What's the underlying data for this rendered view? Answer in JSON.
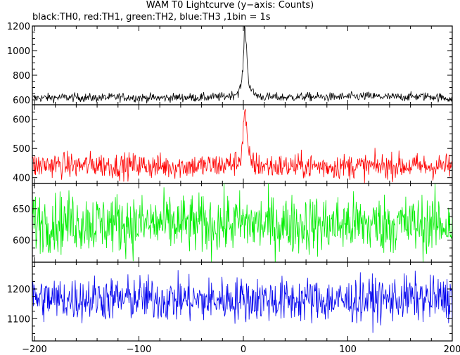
{
  "chart_data": {
    "type": "line",
    "title": "WAM T0 Lightcurve (y−axis: Counts)",
    "subtitle": "black:TH0, red:TH1, green:TH2, blue:TH3 ,1bin = 1s",
    "xlim": [
      -202,
      200
    ],
    "x_ticks": [
      -200,
      -100,
      0,
      100,
      200
    ],
    "x_tick_labels": [
      "−200",
      "−100",
      "0",
      "100",
      "200"
    ],
    "grid": false,
    "panels": [
      {
        "name": "TH0",
        "color": "#000000",
        "ylim": [
          560,
          1200
        ],
        "y_ticks": [
          600,
          800,
          1000,
          1200
        ],
        "y_tick_labels": [
          "600",
          "800",
          "1000",
          "1200"
        ],
        "x": [
          -200,
          -180,
          -160,
          -140,
          -120,
          -100,
          -80,
          -60,
          -40,
          -20,
          -10,
          -5,
          -2,
          0,
          1,
          2,
          3,
          4,
          5,
          6,
          8,
          10,
          15,
          20,
          40,
          60,
          80,
          100,
          120,
          140,
          160,
          180,
          198
        ],
        "values": [
          615,
          618,
          620,
          615,
          622,
          618,
          615,
          620,
          618,
          625,
          640,
          660,
          720,
          900,
          1180,
          1150,
          1050,
          850,
          760,
          720,
          680,
          650,
          630,
          622,
          620,
          625,
          622,
          625,
          630,
          622,
          625,
          628,
          610
        ],
        "noise": 18
      },
      {
        "name": "TH1",
        "color": "#ff0000",
        "ylim": [
          380,
          650
        ],
        "y_ticks": [
          400,
          500,
          600
        ],
        "y_tick_labels": [
          "400",
          "500",
          "600"
        ],
        "x": [
          -200,
          -180,
          -160,
          -140,
          -120,
          -100,
          -80,
          -60,
          -40,
          -20,
          -10,
          -5,
          -2,
          0,
          1,
          2,
          3,
          4,
          5,
          6,
          8,
          10,
          15,
          20,
          40,
          60,
          80,
          100,
          120,
          140,
          160,
          180,
          198
        ],
        "values": [
          440,
          445,
          440,
          445,
          440,
          442,
          438,
          440,
          440,
          442,
          448,
          455,
          480,
          560,
          640,
          620,
          560,
          510,
          480,
          465,
          455,
          448,
          442,
          440,
          438,
          440,
          438,
          440,
          438,
          440,
          440,
          438,
          440
        ],
        "noise": 22
      },
      {
        "name": "TH2",
        "color": "#00ee00",
        "ylim": [
          565,
          690
        ],
        "y_ticks": [
          600,
          650
        ],
        "y_tick_labels": [
          "600",
          "650"
        ],
        "x": [
          -200,
          -180,
          -160,
          -140,
          -120,
          -100,
          -80,
          -60,
          -40,
          -20,
          0,
          20,
          40,
          60,
          80,
          100,
          120,
          140,
          160,
          180,
          198
        ],
        "values": [
          630,
          628,
          630,
          626,
          628,
          624,
          626,
          625,
          624,
          626,
          627,
          625,
          624,
          625,
          624,
          626,
          625,
          626,
          624,
          625,
          626
        ],
        "noise": 24
      },
      {
        "name": "TH3",
        "color": "#0000ee",
        "ylim": [
          1025,
          1290
        ],
        "y_ticks": [
          1100,
          1200
        ],
        "y_tick_labels": [
          "1100",
          "1200"
        ],
        "x": [
          -200,
          -180,
          -160,
          -140,
          -120,
          -100,
          -80,
          -60,
          -40,
          -20,
          0,
          20,
          40,
          60,
          80,
          100,
          120,
          140,
          160,
          180,
          198
        ],
        "values": [
          1170,
          1165,
          1165,
          1170,
          1165,
          1170,
          1165,
          1165,
          1160,
          1165,
          1165,
          1165,
          1160,
          1165,
          1160,
          1160,
          1165,
          1165,
          1170,
          1165,
          1170
        ],
        "noise": 38
      }
    ]
  }
}
